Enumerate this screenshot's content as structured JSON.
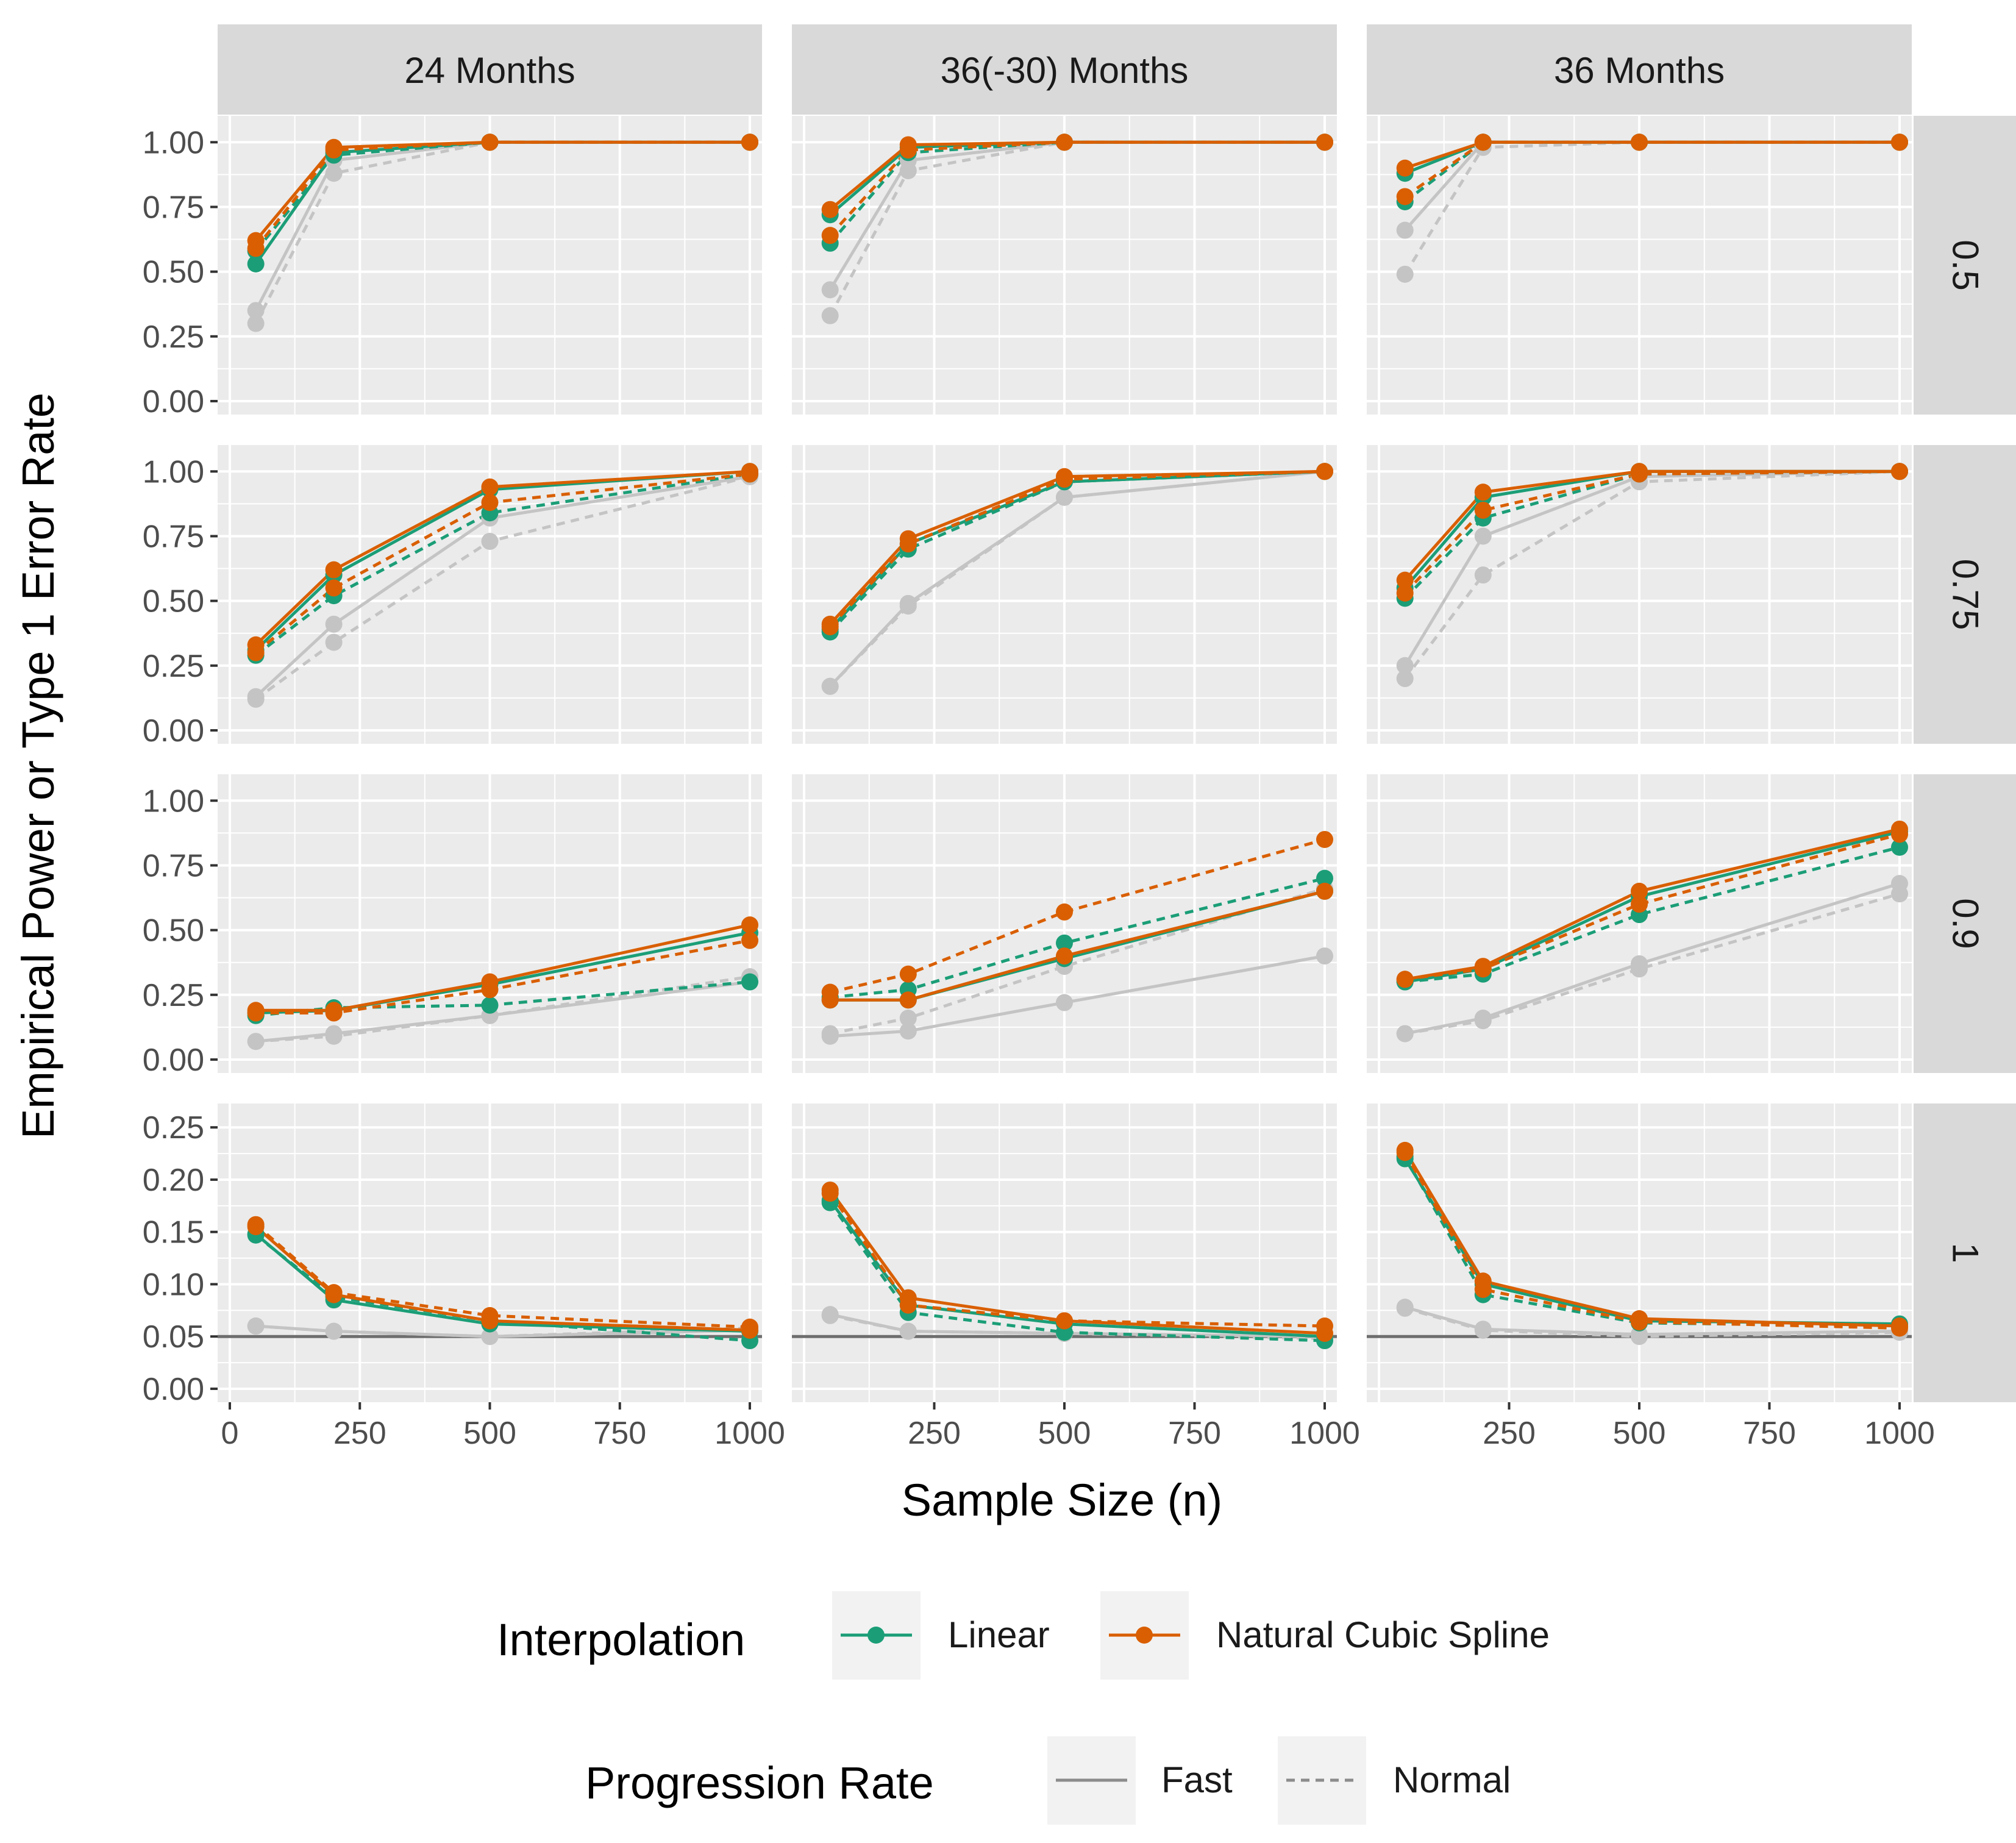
{
  "chart_data": {
    "type": "line",
    "title": "",
    "xlabel": "Sample Size (n)",
    "ylabel": "Empirical Power or Type 1 Error Rate",
    "x": [
      50,
      200,
      500,
      1000
    ],
    "xlim": [
      0,
      1000
    ],
    "columns": [
      "24 Months",
      "36(-30) Months",
      "36 Months"
    ],
    "rows": [
      "0.5",
      "0.75",
      "0.9",
      "1"
    ],
    "x_ticks": [
      [
        "0",
        "250",
        "500",
        "750",
        "1000"
      ],
      [
        "250",
        "500",
        "750",
        "1000"
      ],
      [
        "250",
        "500",
        "750",
        "1000"
      ]
    ],
    "row_axes": [
      {
        "ylim": [
          0,
          1.05
        ],
        "ticks": [
          "0.00",
          "0.25",
          "0.50",
          "0.75",
          "1.00"
        ],
        "tick_values": [
          0,
          0.25,
          0.5,
          0.75,
          1.0
        ]
      },
      {
        "ylim": [
          0,
          1.05
        ],
        "ticks": [
          "0.00",
          "0.25",
          "0.50",
          "0.75",
          "1.00"
        ],
        "tick_values": [
          0,
          0.25,
          0.5,
          0.75,
          1.0
        ]
      },
      {
        "ylim": [
          0,
          1.05
        ],
        "ticks": [
          "0.00",
          "0.25",
          "0.50",
          "0.75",
          "1.00"
        ],
        "tick_values": [
          0,
          0.25,
          0.5,
          0.75,
          1.0
        ]
      },
      {
        "ylim": [
          0,
          0.26
        ],
        "ticks": [
          "0.00",
          "0.05",
          "0.10",
          "0.15",
          "0.20",
          "0.25"
        ],
        "tick_values": [
          0,
          0.05,
          0.1,
          0.15,
          0.2,
          0.25
        ],
        "reference_line": 0.05
      }
    ],
    "grid": true,
    "legend_position": "bottom",
    "legends": {
      "interpolation": {
        "title": "Interpolation",
        "entries": [
          "Linear",
          "Natural Cubic Spline"
        ]
      },
      "progression": {
        "title": "Progression Rate",
        "entries": [
          "Fast",
          "Normal"
        ]
      }
    },
    "colors": {
      "Linear": "#1b9e77",
      "Natural Cubic Spline": "#d95f02",
      "Reference": "#c4c4c4",
      "strip": "#d9d9d9",
      "panel": "#ebebeb"
    },
    "panels": [
      {
        "col": "24 Months",
        "row": "0.5",
        "series": [
          {
            "interp": "Linear",
            "rate": "Fast",
            "values": [
              0.53,
              0.96,
              1.0,
              1.0
            ]
          },
          {
            "interp": "Linear",
            "rate": "Normal",
            "values": [
              0.58,
              0.95,
              1.0,
              1.0
            ]
          },
          {
            "interp": "Natural Cubic Spline",
            "rate": "Fast",
            "values": [
              0.62,
              0.98,
              1.0,
              1.0
            ]
          },
          {
            "interp": "Natural Cubic Spline",
            "rate": "Normal",
            "values": [
              0.59,
              0.97,
              1.0,
              1.0
            ]
          },
          {
            "interp": "Reference",
            "rate": "Fast",
            "values": [
              0.35,
              0.93,
              1.0,
              1.0
            ]
          },
          {
            "interp": "Reference",
            "rate": "Normal",
            "values": [
              0.3,
              0.88,
              1.0,
              1.0
            ]
          }
        ]
      },
      {
        "col": "36(-30) Months",
        "row": "0.5",
        "series": [
          {
            "interp": "Linear",
            "rate": "Fast",
            "values": [
              0.72,
              0.98,
              1.0,
              1.0
            ]
          },
          {
            "interp": "Linear",
            "rate": "Normal",
            "values": [
              0.61,
              0.96,
              1.0,
              1.0
            ]
          },
          {
            "interp": "Natural Cubic Spline",
            "rate": "Fast",
            "values": [
              0.74,
              0.99,
              1.0,
              1.0
            ]
          },
          {
            "interp": "Natural Cubic Spline",
            "rate": "Normal",
            "values": [
              0.64,
              0.97,
              1.0,
              1.0
            ]
          },
          {
            "interp": "Reference",
            "rate": "Fast",
            "values": [
              0.43,
              0.93,
              1.0,
              1.0
            ]
          },
          {
            "interp": "Reference",
            "rate": "Normal",
            "values": [
              0.33,
              0.89,
              1.0,
              1.0
            ]
          }
        ]
      },
      {
        "col": "36 Months",
        "row": "0.5",
        "series": [
          {
            "interp": "Linear",
            "rate": "Fast",
            "values": [
              0.88,
              1.0,
              1.0,
              1.0
            ]
          },
          {
            "interp": "Linear",
            "rate": "Normal",
            "values": [
              0.77,
              1.0,
              1.0,
              1.0
            ]
          },
          {
            "interp": "Natural Cubic Spline",
            "rate": "Fast",
            "values": [
              0.9,
              1.0,
              1.0,
              1.0
            ]
          },
          {
            "interp": "Natural Cubic Spline",
            "rate": "Normal",
            "values": [
              0.79,
              1.0,
              1.0,
              1.0
            ]
          },
          {
            "interp": "Reference",
            "rate": "Fast",
            "values": [
              0.66,
              1.0,
              1.0,
              1.0
            ]
          },
          {
            "interp": "Reference",
            "rate": "Normal",
            "values": [
              0.49,
              0.98,
              1.0,
              1.0
            ]
          }
        ]
      },
      {
        "col": "24 Months",
        "row": "0.75",
        "series": [
          {
            "interp": "Linear",
            "rate": "Fast",
            "values": [
              0.31,
              0.6,
              0.93,
              1.0
            ]
          },
          {
            "interp": "Linear",
            "rate": "Normal",
            "values": [
              0.29,
              0.52,
              0.84,
              0.99
            ]
          },
          {
            "interp": "Natural Cubic Spline",
            "rate": "Fast",
            "values": [
              0.33,
              0.62,
              0.94,
              1.0
            ]
          },
          {
            "interp": "Natural Cubic Spline",
            "rate": "Normal",
            "values": [
              0.3,
              0.55,
              0.88,
              0.99
            ]
          },
          {
            "interp": "Reference",
            "rate": "Fast",
            "values": [
              0.13,
              0.41,
              0.82,
              0.98
            ]
          },
          {
            "interp": "Reference",
            "rate": "Normal",
            "values": [
              0.12,
              0.34,
              0.73,
              0.98
            ]
          }
        ]
      },
      {
        "col": "36(-30) Months",
        "row": "0.75",
        "series": [
          {
            "interp": "Linear",
            "rate": "Fast",
            "values": [
              0.39,
              0.72,
              0.96,
              1.0
            ]
          },
          {
            "interp": "Linear",
            "rate": "Normal",
            "values": [
              0.38,
              0.7,
              0.96,
              1.0
            ]
          },
          {
            "interp": "Natural Cubic Spline",
            "rate": "Fast",
            "values": [
              0.41,
              0.74,
              0.98,
              1.0
            ]
          },
          {
            "interp": "Natural Cubic Spline",
            "rate": "Normal",
            "values": [
              0.4,
              0.72,
              0.97,
              1.0
            ]
          },
          {
            "interp": "Reference",
            "rate": "Fast",
            "values": [
              0.17,
              0.49,
              0.9,
              1.0
            ]
          },
          {
            "interp": "Reference",
            "rate": "Normal",
            "values": [
              0.17,
              0.48,
              0.9,
              1.0
            ]
          }
        ]
      },
      {
        "col": "36 Months",
        "row": "0.75",
        "series": [
          {
            "interp": "Linear",
            "rate": "Fast",
            "values": [
              0.55,
              0.9,
              1.0,
              1.0
            ]
          },
          {
            "interp": "Linear",
            "rate": "Normal",
            "values": [
              0.51,
              0.82,
              0.99,
              1.0
            ]
          },
          {
            "interp": "Natural Cubic Spline",
            "rate": "Fast",
            "values": [
              0.58,
              0.92,
              1.0,
              1.0
            ]
          },
          {
            "interp": "Natural Cubic Spline",
            "rate": "Normal",
            "values": [
              0.53,
              0.85,
              0.99,
              1.0
            ]
          },
          {
            "interp": "Reference",
            "rate": "Fast",
            "values": [
              0.25,
              0.75,
              0.98,
              1.0
            ]
          },
          {
            "interp": "Reference",
            "rate": "Normal",
            "values": [
              0.2,
              0.6,
              0.96,
              1.0
            ]
          }
        ]
      },
      {
        "col": "24 Months",
        "row": "0.9",
        "series": [
          {
            "interp": "Linear",
            "rate": "Fast",
            "values": [
              0.18,
              0.19,
              0.29,
              0.49
            ]
          },
          {
            "interp": "Linear",
            "rate": "Normal",
            "values": [
              0.17,
              0.2,
              0.21,
              0.3
            ]
          },
          {
            "interp": "Natural Cubic Spline",
            "rate": "Fast",
            "values": [
              0.19,
              0.19,
              0.3,
              0.52
            ]
          },
          {
            "interp": "Natural Cubic Spline",
            "rate": "Normal",
            "values": [
              0.18,
              0.18,
              0.27,
              0.46
            ]
          },
          {
            "interp": "Reference",
            "rate": "Fast",
            "values": [
              0.07,
              0.1,
              0.17,
              0.3
            ]
          },
          {
            "interp": "Reference",
            "rate": "Normal",
            "values": [
              0.07,
              0.09,
              0.17,
              0.32
            ]
          }
        ]
      },
      {
        "col": "36(-30) Months",
        "row": "0.9",
        "series": [
          {
            "interp": "Linear",
            "rate": "Fast",
            "values": [
              0.23,
              0.23,
              0.39,
              0.65
            ]
          },
          {
            "interp": "Linear",
            "rate": "Normal",
            "values": [
              0.24,
              0.27,
              0.45,
              0.7
            ]
          },
          {
            "interp": "Natural Cubic Spline",
            "rate": "Fast",
            "values": [
              0.23,
              0.23,
              0.4,
              0.65
            ]
          },
          {
            "interp": "Natural Cubic Spline",
            "rate": "Normal",
            "values": [
              0.26,
              0.33,
              0.57,
              0.85
            ]
          },
          {
            "interp": "Reference",
            "rate": "Fast",
            "values": [
              0.09,
              0.11,
              0.22,
              0.4
            ]
          },
          {
            "interp": "Reference",
            "rate": "Normal",
            "values": [
              0.1,
              0.16,
              0.36,
              0.66
            ]
          }
        ]
      },
      {
        "col": "36 Months",
        "row": "0.9",
        "series": [
          {
            "interp": "Linear",
            "rate": "Fast",
            "values": [
              0.3,
              0.35,
              0.63,
              0.88
            ]
          },
          {
            "interp": "Linear",
            "rate": "Normal",
            "values": [
              0.3,
              0.33,
              0.56,
              0.82
            ]
          },
          {
            "interp": "Natural Cubic Spline",
            "rate": "Fast",
            "values": [
              0.31,
              0.36,
              0.65,
              0.89
            ]
          },
          {
            "interp": "Natural Cubic Spline",
            "rate": "Normal",
            "values": [
              0.31,
              0.35,
              0.6,
              0.87
            ]
          },
          {
            "interp": "Reference",
            "rate": "Fast",
            "values": [
              0.1,
              0.16,
              0.37,
              0.68
            ]
          },
          {
            "interp": "Reference",
            "rate": "Normal",
            "values": [
              0.1,
              0.15,
              0.35,
              0.64
            ]
          }
        ]
      },
      {
        "col": "24 Months",
        "row": "1",
        "series": [
          {
            "interp": "Linear",
            "rate": "Fast",
            "values": [
              0.148,
              0.085,
              0.062,
              0.055
            ]
          },
          {
            "interp": "Linear",
            "rate": "Normal",
            "values": [
              0.147,
              0.088,
              0.065,
              0.046
            ]
          },
          {
            "interp": "Natural Cubic Spline",
            "rate": "Fast",
            "values": [
              0.155,
              0.09,
              0.065,
              0.056
            ]
          },
          {
            "interp": "Natural Cubic Spline",
            "rate": "Normal",
            "values": [
              0.157,
              0.092,
              0.07,
              0.059
            ]
          },
          {
            "interp": "Reference",
            "rate": "Fast",
            "values": [
              0.06,
              0.055,
              0.05,
              0.056
            ]
          },
          {
            "interp": "Reference",
            "rate": "Normal",
            "values": [
              0.06,
              0.055,
              0.05,
              0.058
            ]
          }
        ]
      },
      {
        "col": "36(-30) Months",
        "row": "1",
        "series": [
          {
            "interp": "Linear",
            "rate": "Fast",
            "values": [
              0.18,
              0.08,
              0.062,
              0.05
            ]
          },
          {
            "interp": "Linear",
            "rate": "Normal",
            "values": [
              0.178,
              0.073,
              0.054,
              0.046
            ]
          },
          {
            "interp": "Natural Cubic Spline",
            "rate": "Fast",
            "values": [
              0.19,
              0.087,
              0.065,
              0.053
            ]
          },
          {
            "interp": "Natural Cubic Spline",
            "rate": "Normal",
            "values": [
              0.187,
              0.08,
              0.065,
              0.06
            ]
          },
          {
            "interp": "Reference",
            "rate": "Fast",
            "values": [
              0.071,
              0.055,
              0.053,
              0.05
            ]
          },
          {
            "interp": "Reference",
            "rate": "Normal",
            "values": [
              0.07,
              0.055,
              0.053,
              0.048
            ]
          }
        ]
      },
      {
        "col": "36 Months",
        "row": "1",
        "series": [
          {
            "interp": "Linear",
            "rate": "Fast",
            "values": [
              0.22,
              0.1,
              0.065,
              0.062
            ]
          },
          {
            "interp": "Linear",
            "rate": "Normal",
            "values": [
              0.222,
              0.09,
              0.063,
              0.06
            ]
          },
          {
            "interp": "Natural Cubic Spline",
            "rate": "Fast",
            "values": [
              0.228,
              0.103,
              0.067,
              0.06
            ]
          },
          {
            "interp": "Natural Cubic Spline",
            "rate": "Normal",
            "values": [
              0.226,
              0.095,
              0.064,
              0.058
            ]
          },
          {
            "interp": "Reference",
            "rate": "Fast",
            "values": [
              0.078,
              0.057,
              0.052,
              0.055
            ]
          },
          {
            "interp": "Reference",
            "rate": "Normal",
            "values": [
              0.077,
              0.056,
              0.05,
              0.054
            ]
          }
        ]
      }
    ]
  }
}
